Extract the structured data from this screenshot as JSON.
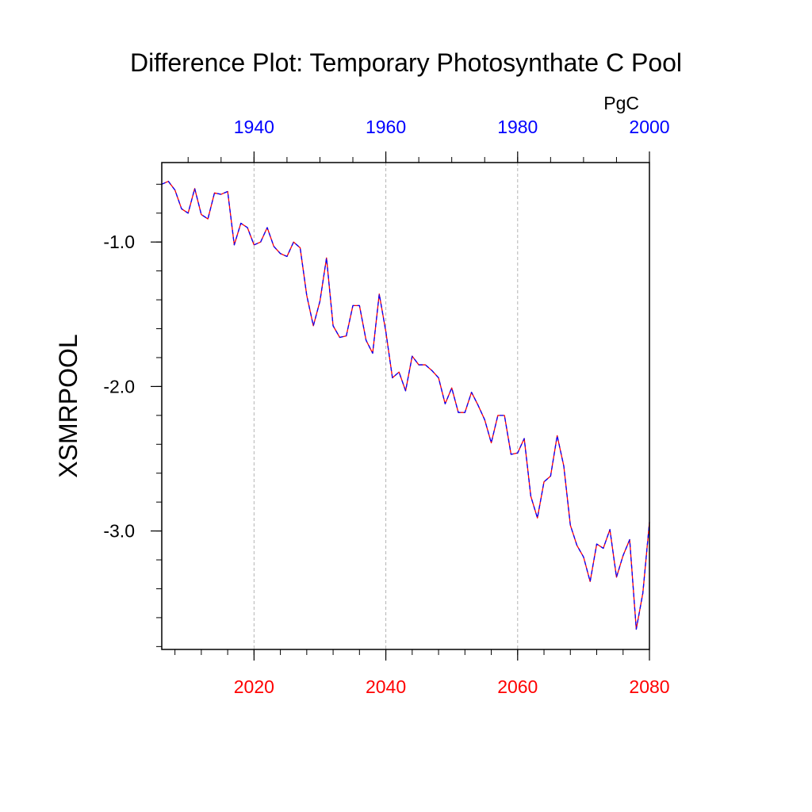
{
  "chart_data": {
    "type": "line",
    "title": "Difference Plot: Temporary Photosynthate C Pool",
    "ylabel": "XSMRPOOL",
    "units_label": "PgC",
    "colors": {
      "bottom_axis": "#ff0000",
      "top_axis": "#0000ff",
      "line_dash_a": "#ff0000",
      "line_dash_b": "#0000ff",
      "grid": "#b4b4b4"
    },
    "grid_vertical": true,
    "bottom_axis": {
      "xlim": [
        2006,
        2080
      ],
      "major_ticks": [
        2020,
        2040,
        2060,
        2080
      ],
      "tick_labels": [
        "2020",
        "2040",
        "2060",
        "2080"
      ],
      "minor_step": 4
    },
    "top_axis": {
      "xlim": [
        1926,
        2000
      ],
      "major_ticks": [
        1940,
        1960,
        1980,
        2000
      ],
      "tick_labels": [
        "1940",
        "1960",
        "1980",
        "2000"
      ],
      "minor_step": 5
    },
    "y_axis": {
      "ylim": [
        -3.82,
        -0.45
      ],
      "major_ticks": [
        -1.0,
        -2.0,
        -3.0
      ],
      "tick_labels": [
        "-1.0",
        "-2.0",
        "-3.0"
      ],
      "minor_step": 0.2
    },
    "series": [
      {
        "x": [
          2006,
          2007,
          2008,
          2009,
          2010,
          2011,
          2012,
          2013,
          2014,
          2015,
          2016,
          2017,
          2018,
          2019,
          2020,
          2021,
          2022,
          2023,
          2024,
          2025,
          2026,
          2027,
          2028,
          2029,
          2030,
          2031,
          2032,
          2033,
          2034,
          2035,
          2036,
          2037,
          2038,
          2039,
          2040,
          2041,
          2042,
          2043,
          2044,
          2045,
          2046,
          2047,
          2048,
          2049,
          2050,
          2051,
          2052,
          2053,
          2054,
          2055,
          2056,
          2057,
          2058,
          2059,
          2060,
          2061,
          2062,
          2063,
          2064,
          2065,
          2066,
          2067,
          2068,
          2069,
          2070,
          2071,
          2072,
          2073,
          2074,
          2075,
          2076,
          2077,
          2078,
          2079,
          2080
        ],
        "values": [
          -0.6,
          -0.58,
          -0.64,
          -0.77,
          -0.8,
          -0.63,
          -0.81,
          -0.84,
          -0.66,
          -0.67,
          -0.65,
          -1.02,
          -0.87,
          -0.9,
          -1.02,
          -1.0,
          -0.9,
          -1.03,
          -1.08,
          -1.1,
          -1.0,
          -1.04,
          -1.37,
          -1.58,
          -1.41,
          -1.11,
          -1.58,
          -1.66,
          -1.65,
          -1.44,
          -1.44,
          -1.68,
          -1.77,
          -1.36,
          -1.62,
          -1.94,
          -1.9,
          -2.03,
          -1.79,
          -1.85,
          -1.85,
          -1.89,
          -1.94,
          -2.12,
          -2.01,
          -2.18,
          -2.18,
          -2.04,
          -2.13,
          -2.23,
          -2.39,
          -2.2,
          -2.2,
          -2.47,
          -2.46,
          -2.36,
          -2.76,
          -2.91,
          -2.66,
          -2.62,
          -2.34,
          -2.55,
          -2.96,
          -3.1,
          -3.18,
          -3.35,
          -3.09,
          -3.12,
          -2.99,
          -3.32,
          -3.17,
          -3.06,
          -3.68,
          -3.43,
          -2.94
        ]
      }
    ]
  }
}
